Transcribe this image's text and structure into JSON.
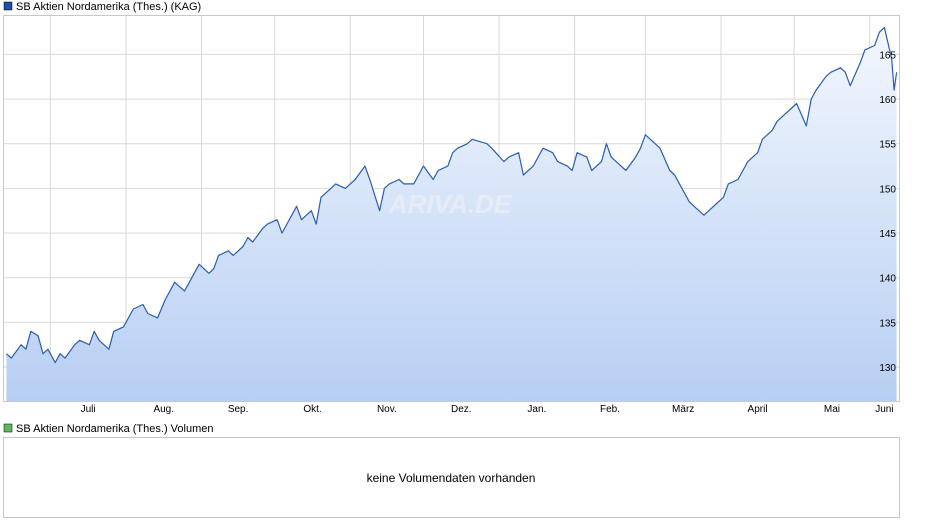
{
  "price_legend": {
    "label": "SB Aktien Nordamerika (Thes.) (KAG)",
    "color": "#1f4fa8"
  },
  "volume_legend": {
    "label": "SB Aktien Nordamerika (Thes.) Volumen",
    "color": "#5cb85c"
  },
  "volume_panel": {
    "message": "keine Volumendaten vorhanden"
  },
  "watermark": "ARIVA.DE",
  "colors": {
    "line": "#2a5db0",
    "fill_top": "#f3f7fd",
    "fill_bottom": "#b7cff4",
    "grid": "#d9d9d9"
  },
  "chart_data": {
    "type": "area",
    "title": "SB Aktien Nordamerika (Thes.) (KAG)",
    "x_tick_labels": [
      "Juli",
      "Aug.",
      "Sep.",
      "Okt.",
      "Nov.",
      "Dez.",
      "Jan.",
      "Feb.",
      "März",
      "April",
      "Mai",
      "Juni"
    ],
    "y_tick_labels": [
      "130",
      "135",
      "140",
      "145",
      "150",
      "155",
      "160",
      "165"
    ],
    "ylim": [
      126.2,
      169.3
    ],
    "grid": true,
    "series": [
      {
        "name": "SB Aktien Nordamerika (Thes.) (KAG)",
        "x": [
          "2023-06-13",
          "2023-06-15",
          "2023-06-19",
          "2023-06-21",
          "2023-06-23",
          "2023-06-26",
          "2023-06-28",
          "2023-06-30",
          "2023-07-03",
          "2023-07-05",
          "2023-07-07",
          "2023-07-11",
          "2023-07-13",
          "2023-07-17",
          "2023-07-19",
          "2023-07-21",
          "2023-07-25",
          "2023-07-27",
          "2023-07-31",
          "2023-08-02",
          "2023-08-04",
          "2023-08-08",
          "2023-08-10",
          "2023-08-14",
          "2023-08-17",
          "2023-08-21",
          "2023-08-23",
          "2023-08-25",
          "2023-08-29",
          "2023-08-31",
          "2023-09-04",
          "2023-09-06",
          "2023-09-08",
          "2023-09-12",
          "2023-09-14",
          "2023-09-18",
          "2023-09-20",
          "2023-09-22",
          "2023-09-26",
          "2023-09-28",
          "2023-10-02",
          "2023-10-04",
          "2023-10-06",
          "2023-10-10",
          "2023-10-12",
          "2023-10-16",
          "2023-10-18",
          "2023-10-20",
          "2023-10-24",
          "2023-10-26",
          "2023-10-30",
          "2023-11-01",
          "2023-11-03",
          "2023-11-07",
          "2023-11-09",
          "2023-11-13",
          "2023-11-15",
          "2023-11-17",
          "2023-11-21",
          "2023-11-23",
          "2023-11-27",
          "2023-11-29",
          "2023-12-01",
          "2023-12-05",
          "2023-12-07",
          "2023-12-11",
          "2023-12-13",
          "2023-12-15",
          "2023-12-19",
          "2023-12-21",
          "2023-12-27",
          "2023-12-29",
          "2024-01-03",
          "2024-01-05",
          "2024-01-09",
          "2024-01-11",
          "2024-01-15",
          "2024-01-17",
          "2024-01-19",
          "2024-01-23",
          "2024-01-25",
          "2024-01-29",
          "2024-01-31",
          "2024-02-02",
          "2024-02-06",
          "2024-02-08",
          "2024-02-12",
          "2024-02-14",
          "2024-02-16",
          "2024-02-20",
          "2024-02-22",
          "2024-02-26",
          "2024-02-28",
          "2024-03-01",
          "2024-03-05",
          "2024-03-07",
          "2024-03-11",
          "2024-03-13",
          "2024-03-15",
          "2024-03-19",
          "2024-03-21",
          "2024-03-25",
          "2024-03-27",
          "2024-04-02",
          "2024-04-04",
          "2024-04-08",
          "2024-04-10",
          "2024-04-12",
          "2024-04-16",
          "2024-04-18",
          "2024-04-22",
          "2024-04-24",
          "2024-04-26",
          "2024-04-30",
          "2024-05-02",
          "2024-05-06",
          "2024-05-08",
          "2024-05-10",
          "2024-05-14",
          "2024-05-16",
          "2024-05-20",
          "2024-05-22",
          "2024-05-24",
          "2024-05-28",
          "2024-05-30",
          "2024-06-03",
          "2024-06-05",
          "2024-06-07",
          "2024-06-10",
          "2024-06-11",
          "2024-06-12"
        ],
        "y": [
          131.5,
          131.0,
          132.5,
          132.0,
          134.0,
          133.5,
          131.5,
          132.0,
          130.5,
          131.5,
          131.0,
          132.5,
          133.0,
          132.5,
          134.0,
          133.0,
          132.0,
          134.0,
          134.5,
          135.5,
          136.5,
          137.0,
          136.0,
          135.5,
          137.5,
          139.5,
          139.0,
          138.5,
          140.5,
          141.5,
          140.5,
          141.0,
          142.5,
          143.0,
          142.5,
          143.5,
          144.5,
          144.0,
          145.5,
          146.0,
          146.5,
          145.0,
          146.0,
          148.0,
          146.5,
          147.5,
          146.0,
          149.0,
          150.0,
          150.5,
          150.0,
          150.5,
          151.0,
          152.5,
          151.0,
          147.5,
          150.0,
          150.5,
          151.0,
          150.5,
          150.5,
          151.5,
          152.5,
          151.0,
          152.0,
          152.5,
          154.0,
          154.5,
          155.0,
          155.5,
          155.0,
          154.5,
          153.0,
          153.5,
          154.0,
          151.5,
          152.5,
          153.5,
          154.5,
          154.0,
          153.0,
          152.5,
          152.0,
          154.0,
          153.5,
          152.0,
          153.0,
          155.0,
          153.5,
          152.5,
          152.0,
          153.5,
          154.5,
          156.0,
          155.0,
          154.5,
          152.0,
          151.5,
          150.5,
          148.5,
          148.0,
          147.0,
          147.5,
          149.0,
          150.5,
          151.0,
          152.0,
          153.0,
          154.0,
          155.5,
          156.5,
          157.5,
          158.0,
          159.0,
          159.5,
          157.0,
          160.0,
          161.0,
          162.5,
          163.0,
          163.5,
          163.0,
          161.5,
          164.0,
          165.5,
          166.0,
          167.5,
          168.0,
          164.5,
          161.0,
          163.0
        ]
      }
    ]
  }
}
